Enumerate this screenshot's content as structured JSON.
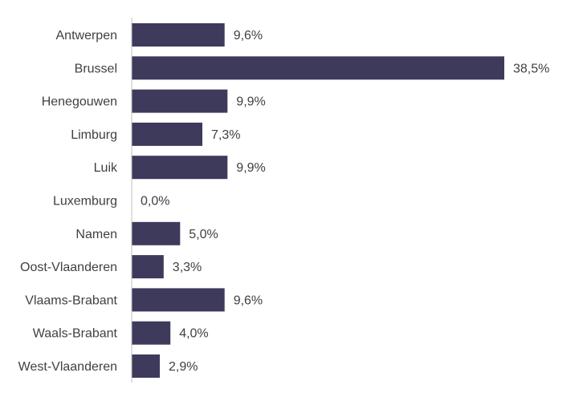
{
  "chart_data": {
    "type": "bar",
    "orientation": "horizontal",
    "categories": [
      "Antwerpen",
      "Brussel",
      "Henegouwen",
      "Limburg",
      "Luik",
      "Luxemburg",
      "Namen",
      "Oost-Vlaanderen",
      "Vlaams-Brabant",
      "Waals-Brabant",
      "West-Vlaanderen"
    ],
    "values": [
      9.6,
      38.5,
      9.9,
      7.3,
      9.9,
      0.0,
      5.0,
      3.3,
      9.6,
      4.0,
      2.9
    ],
    "value_labels": [
      "9,6%",
      "38,5%",
      "9,9%",
      "7,3%",
      "9,9%",
      "0,0%",
      "5,0%",
      "3,3%",
      "9,6%",
      "4,0%",
      "2,9%"
    ],
    "title": "",
    "xlabel": "",
    "ylabel": "",
    "xlim": [
      0,
      38.5
    ],
    "grid": false,
    "legend": "none",
    "bar_color": "#3d3a5c"
  }
}
